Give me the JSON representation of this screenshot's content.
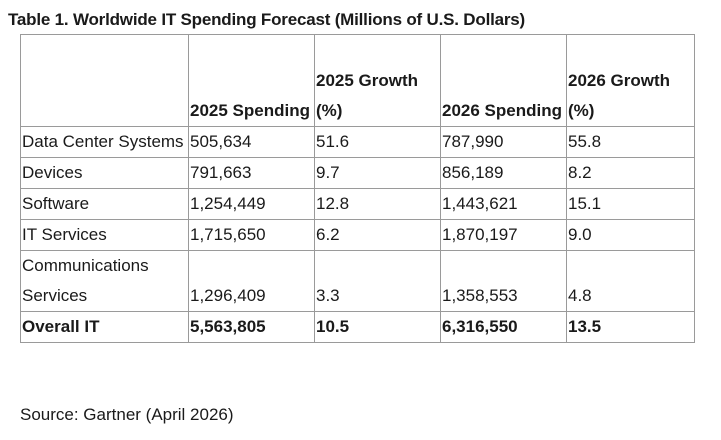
{
  "table": {
    "caption": "Table 1. Worldwide IT Spending Forecast (Millions of U.S. Dollars)",
    "headers": [
      "",
      "2025 Spending",
      "2025 Growth (%)",
      "2026 Spending",
      "2026 Growth (%)"
    ],
    "rows": [
      {
        "category": "Data Center Systems",
        "spending_2025": "505,634",
        "growth_2025": "51.6",
        "spending_2026": "787,990",
        "growth_2026": "55.8"
      },
      {
        "category": "Devices",
        "spending_2025": "791,663",
        "growth_2025": "9.7",
        "spending_2026": "856,189",
        "growth_2026": "8.2"
      },
      {
        "category": "Software",
        "spending_2025": "1,254,449",
        "growth_2025": "12.8",
        "spending_2026": "1,443,621",
        "growth_2026": "15.1"
      },
      {
        "category": "IT Services",
        "spending_2025": "1,715,650",
        "growth_2025": "6.2",
        "spending_2026": "1,870,197",
        "growth_2026": "9.0"
      },
      {
        "category": "Communications Services",
        "spending_2025": "1,296,409",
        "growth_2025": "3.3",
        "spending_2026": "1,358,553",
        "growth_2026": "4.8"
      }
    ],
    "total": {
      "category": "Overall IT",
      "spending_2025": "5,563,805",
      "growth_2025": "10.5",
      "spending_2026": "6,316,550",
      "growth_2026": "13.5"
    }
  },
  "source": "Source: Gartner (April 2026)"
}
